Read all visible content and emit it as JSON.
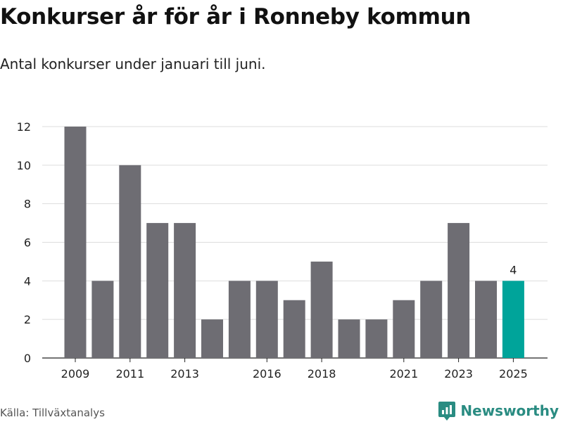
{
  "title": "Konkurser år för år i Ronneby kommun",
  "subtitle": "Antal konkurser under januari till juni.",
  "source": "Källa: Tillväxtanalys",
  "brand": {
    "name": "Newsworthy",
    "icon": "newsworthy-logo-icon",
    "color": "#2a8c82"
  },
  "colors": {
    "bar": "#6e6d73",
    "highlight": "#00a49a",
    "grid": "#dddddd"
  },
  "chart_data": {
    "type": "bar",
    "title": "Konkurser år för år i Ronneby kommun",
    "subtitle": "Antal konkurser under januari till juni.",
    "xlabel": "",
    "ylabel": "",
    "categories": [
      "2009",
      "2010",
      "2011",
      "2012",
      "2013",
      "2014",
      "2015",
      "2016",
      "2017",
      "2018",
      "2019",
      "2020",
      "2021",
      "2022",
      "2023",
      "2024",
      "2025"
    ],
    "values": [
      12,
      4,
      10,
      7,
      7,
      2,
      4,
      4,
      3,
      5,
      2,
      2,
      3,
      4,
      7,
      4,
      4
    ],
    "x_tick_labels": [
      "2009",
      "2011",
      "2013",
      "2016",
      "2018",
      "2021",
      "2023",
      "2025"
    ],
    "y_ticks": [
      0,
      2,
      4,
      6,
      8,
      10,
      12
    ],
    "ylim": [
      0,
      12
    ],
    "grid": true,
    "highlight_category": "2025",
    "highlight_label": "4",
    "legend": "none"
  }
}
